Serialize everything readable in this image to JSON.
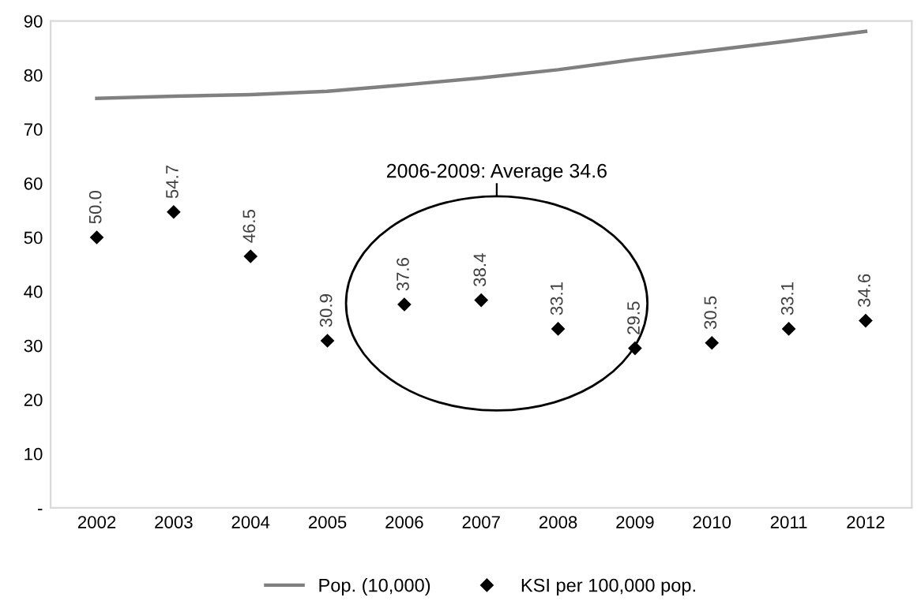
{
  "chart_data": {
    "type": "line",
    "categories": [
      "2002",
      "2003",
      "2004",
      "2005",
      "2006",
      "2007",
      "2008",
      "2009",
      "2010",
      "2011",
      "2012"
    ],
    "series": [
      {
        "name": "Pop. (10,000)",
        "color": "#808080",
        "marker": "none",
        "values": [
          75.7,
          76.1,
          76.4,
          77.0,
          78.2,
          79.5,
          81.0,
          82.9,
          84.6,
          86.3,
          88.1
        ]
      },
      {
        "name": "KSI per 100,000 pop.",
        "type": "scatter",
        "color": "#000000",
        "marker": "diamond",
        "values": [
          50.0,
          54.7,
          46.5,
          30.9,
          37.6,
          38.4,
          33.1,
          29.5,
          30.5,
          33.1,
          34.6
        ],
        "value_labels": [
          "50.0",
          "54.7",
          "46.5",
          "30.9",
          "37.6",
          "38.4",
          "33.1",
          "29.5",
          "30.5",
          "33.1",
          "34.6"
        ]
      }
    ],
    "ylim": [
      0,
      90
    ],
    "yticks": [
      {
        "value": 0,
        "label": "-"
      },
      10,
      20,
      30,
      40,
      50,
      60,
      70,
      80,
      90
    ],
    "annotations": [
      "2006-2009: Average 34.6"
    ],
    "grid": false,
    "legend": "bottom"
  }
}
